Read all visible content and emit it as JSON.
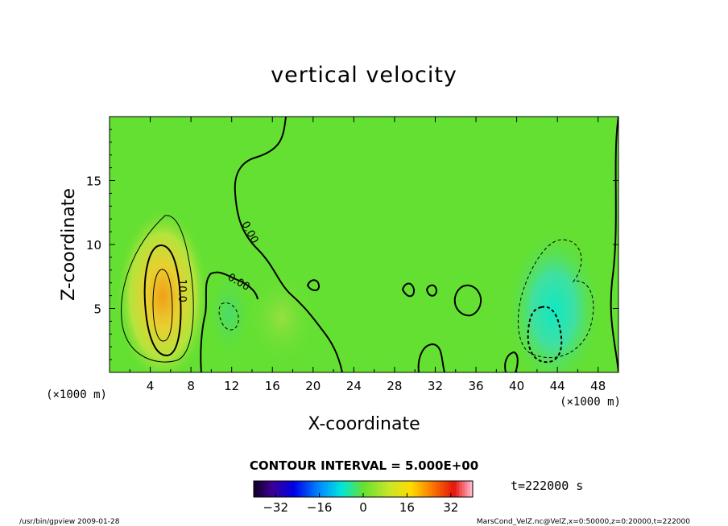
{
  "chart_data": {
    "type": "heatmap",
    "title": "vertical velocity",
    "xlabel": "X-coordinate",
    "ylabel": "Z-coordinate",
    "x_unit": "(×1000 m)",
    "y_unit": "(×1000 m)",
    "xlim": [
      0,
      50
    ],
    "ylim": [
      0,
      20
    ],
    "x_ticks": [
      4,
      8,
      12,
      16,
      20,
      24,
      28,
      32,
      36,
      40,
      44,
      48
    ],
    "y_ticks": [
      5,
      10,
      15
    ],
    "contour_interval": "CONTOUR INTERVAL = 5.000E+00",
    "contour_labels": [
      "0.00",
      "0.00",
      "10.0"
    ],
    "colorbar": {
      "min": -40,
      "max": 40,
      "ticks": [
        -32,
        -16,
        0,
        16,
        32
      ]
    },
    "features": [
      {
        "name": "updraft",
        "x_center": 5.2,
        "z_center": 6.0,
        "peak": 18
      },
      {
        "name": "downdraft",
        "x_center": 42.8,
        "z_center": 4.0,
        "peak": -14
      }
    ]
  },
  "annotations": {
    "time": "t=222000 s",
    "footer_left": "/usr/bin/gpview   2009-01-28",
    "footer_right": "MarsCond_VelZ.nc@VelZ,x=0:50000,z=0:20000,t=222000"
  }
}
